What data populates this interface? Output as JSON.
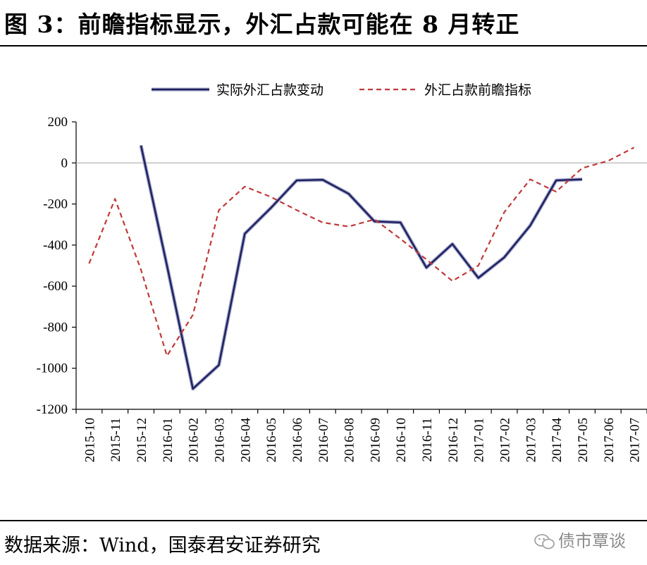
{
  "header": {
    "title": "图 3：前瞻指标显示，外汇占款可能在 8 月转正"
  },
  "footer": {
    "source": "数据来源：Wind，国泰君安证券研究",
    "watermark": "债市覃谈",
    "watermark_icon": "wechat-icon"
  },
  "chart_data": {
    "type": "line",
    "title": "",
    "xlabel": "",
    "ylabel": "",
    "ylim": [
      -1200,
      200
    ],
    "yticks": [
      200,
      0,
      -200,
      -400,
      -600,
      -800,
      -1000,
      -1200
    ],
    "grid": false,
    "legend_position": "top-center",
    "categories": [
      "2015-10",
      "2015-11",
      "2015-12",
      "2016-01",
      "2016-02",
      "2016-03",
      "2016-04",
      "2016-05",
      "2016-06",
      "2016-07",
      "2016-08",
      "2016-09",
      "2016-10",
      "2016-11",
      "2016-12",
      "2017-01",
      "2017-02",
      "2017-03",
      "2017-04",
      "2017-05",
      "2017-06",
      "2017-07"
    ],
    "series": [
      {
        "name": "实际外汇占款变动",
        "color": "#1f1f5c",
        "style": "solid",
        "values": [
          null,
          null,
          85,
          -500,
          -1100,
          -985,
          -345,
          -220,
          -85,
          -82,
          -150,
          -285,
          -290,
          -510,
          -395,
          -560,
          -460,
          -305,
          -85,
          -80,
          null,
          null
        ]
      },
      {
        "name": "外汇占款前瞻指标",
        "color": "#c0393b",
        "style": "dashed",
        "values": [
          -490,
          -175,
          -520,
          -940,
          -740,
          -230,
          -115,
          -165,
          -230,
          -290,
          -310,
          -275,
          -370,
          -470,
          -575,
          -500,
          -240,
          -80,
          -140,
          -25,
          10,
          75
        ]
      }
    ]
  }
}
